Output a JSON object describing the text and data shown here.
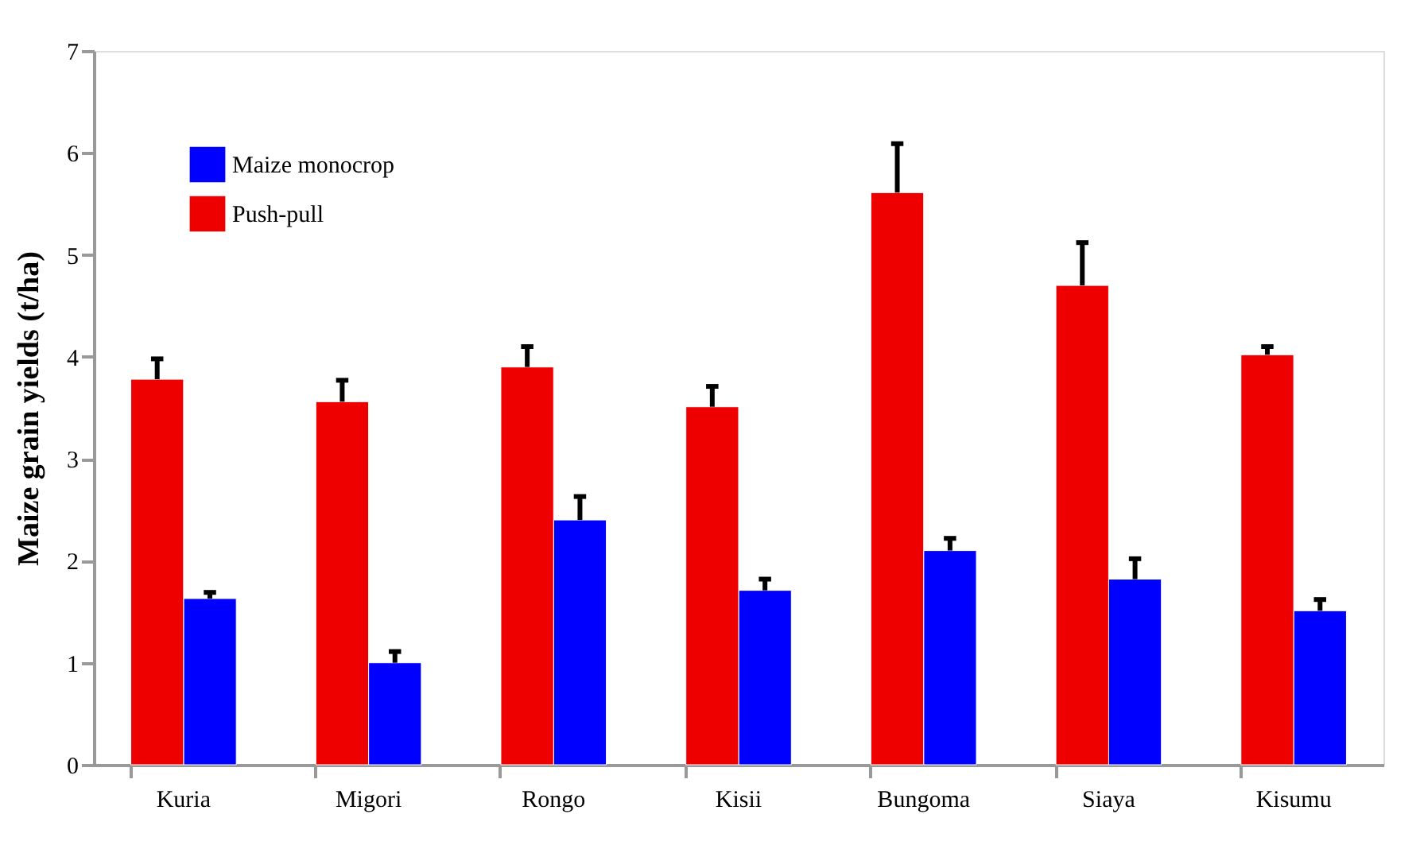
{
  "chart_data": {
    "type": "bar",
    "ylabel": "Maize grain yields (t/ha)",
    "categories": [
      "Kuria",
      "Migori",
      "Rongo",
      "Kisii",
      "Bungoma",
      "Siaya",
      "Kisumu"
    ],
    "series": [
      {
        "name": "Maize monocrop",
        "color": "#0000ff",
        "values": [
          1.63,
          1.0,
          2.4,
          1.71,
          2.1,
          1.82,
          1.51
        ],
        "errors": [
          [
            1.63,
            1.69
          ],
          [
            1.0,
            1.11
          ],
          [
            2.4,
            2.63
          ],
          [
            1.71,
            1.82
          ],
          [
            2.1,
            2.22
          ],
          [
            1.82,
            2.02
          ],
          [
            1.51,
            1.62
          ]
        ]
      },
      {
        "name": "Push-pull",
        "color": "#ee0000",
        "values": [
          3.78,
          3.56,
          3.9,
          3.51,
          5.61,
          4.7,
          4.02
        ],
        "errors": [
          [
            3.78,
            3.98
          ],
          [
            3.56,
            3.77
          ],
          [
            3.9,
            4.1
          ],
          [
            3.51,
            3.71
          ],
          [
            5.61,
            6.09
          ],
          [
            4.7,
            5.12
          ],
          [
            4.02,
            4.1
          ]
        ]
      }
    ],
    "ylim": [
      0,
      7
    ],
    "yticks": [
      0,
      1,
      2,
      3,
      4,
      5,
      6,
      7
    ],
    "grid": false,
    "legend": "top left"
  }
}
